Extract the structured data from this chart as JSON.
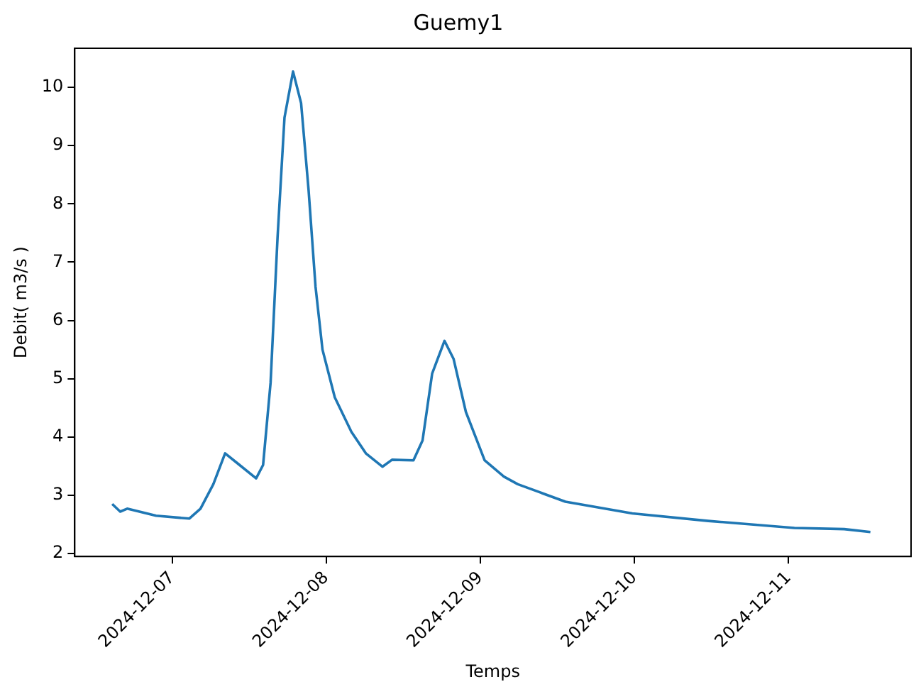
{
  "chart_data": {
    "type": "line",
    "title": "Guemy1",
    "xlabel": "Temps",
    "ylabel": "Debit( m3/s )",
    "x": [
      "2024-12-06T14:40",
      "2024-12-06T15:55",
      "2024-12-06T17:00",
      "2024-12-06T21:30",
      "2024-12-07T02:40",
      "2024-12-07T04:25",
      "2024-12-07T06:25",
      "2024-12-07T08:15",
      "2024-12-07T10:30",
      "2024-12-07T13:05",
      "2024-12-07T14:10",
      "2024-12-07T15:20",
      "2024-12-07T16:25",
      "2024-12-07T17:30",
      "2024-12-07T18:50",
      "2024-12-07T20:05",
      "2024-12-07T21:15",
      "2024-12-07T22:20",
      "2024-12-07T23:25",
      "2024-12-08T01:20",
      "2024-12-08T03:55",
      "2024-12-08T06:10",
      "2024-12-08T08:45",
      "2024-12-08T10:15",
      "2024-12-08T13:35",
      "2024-12-08T15:00",
      "2024-12-08T16:30",
      "2024-12-08T18:25",
      "2024-12-08T19:50",
      "2024-12-08T21:45",
      "2024-12-09T00:40",
      "2024-12-09T03:40",
      "2024-12-09T05:50",
      "2024-12-09T13:15",
      "2024-12-09T23:40",
      "2024-12-10T11:30",
      "2024-12-11T00:55",
      "2024-12-11T08:40",
      "2024-12-11T12:45"
    ],
    "series": [
      {
        "color": "#1f77b4",
        "values": [
          2.85,
          2.72,
          2.77,
          2.65,
          2.6,
          2.77,
          3.19,
          3.72,
          3.52,
          3.29,
          3.52,
          4.93,
          7.42,
          9.48,
          10.27,
          9.73,
          8.24,
          6.58,
          5.5,
          4.68,
          4.09,
          3.72,
          3.49,
          3.61,
          3.6,
          3.94,
          5.09,
          5.65,
          5.34,
          4.43,
          3.6,
          3.32,
          3.19,
          2.89,
          2.69,
          2.56,
          2.44,
          2.42,
          2.37
        ]
      }
    ],
    "xlim": [
      "2024-12-06T08:50",
      "2024-12-11T19:05"
    ],
    "xticks": [
      "2024-12-07",
      "2024-12-08",
      "2024-12-09",
      "2024-12-10",
      "2024-12-11"
    ],
    "ylim": [
      1.95,
      10.67
    ],
    "yticks": [
      2,
      3,
      4,
      5,
      6,
      7,
      8,
      9,
      10
    ],
    "grid": false,
    "legend": false,
    "marker": "none",
    "line_style": "solid"
  }
}
